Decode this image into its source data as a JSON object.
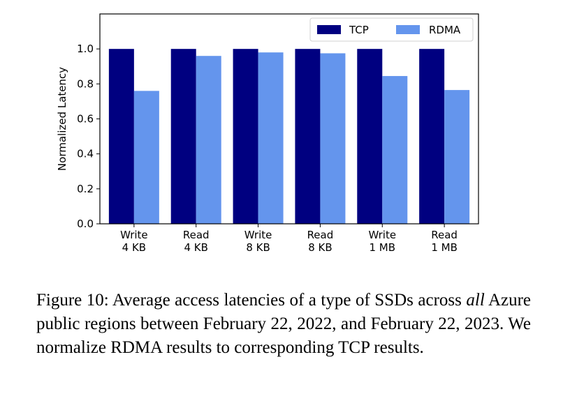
{
  "chart_data": {
    "type": "bar",
    "categories": [
      [
        "Write",
        "4 KB"
      ],
      [
        "Read",
        "4 KB"
      ],
      [
        "Write",
        "8 KB"
      ],
      [
        "Read",
        "8 KB"
      ],
      [
        "Write",
        "1 MB"
      ],
      [
        "Read",
        "1 MB"
      ]
    ],
    "series": [
      {
        "name": "TCP",
        "color": "#000080",
        "values": [
          1.0,
          1.0,
          1.0,
          1.0,
          1.0,
          1.0
        ]
      },
      {
        "name": "RDMA",
        "color": "#6495ED",
        "values": [
          0.76,
          0.96,
          0.98,
          0.975,
          0.845,
          0.765
        ]
      }
    ],
    "ylabel": "Normalized Latency",
    "ylim": [
      0,
      1.2
    ],
    "yticks": [
      "0.0",
      "0.2",
      "0.4",
      "0.6",
      "0.8",
      "1.0"
    ],
    "legend_position": "top-right",
    "grid": false
  },
  "caption": {
    "prefix": "Figure 10: Average access latencies of a type of SSDs across",
    "emph": "all",
    "suffix": "Azure public regions between February 22, 2022, and February 22, 2023. We normalize RDMA results to corre­sponding TCP results."
  }
}
